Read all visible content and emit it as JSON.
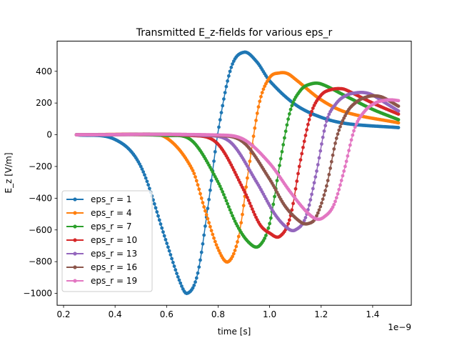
{
  "chart_data": {
    "type": "line",
    "title": "Transmitted E_z-fields for various eps_r",
    "xlabel": "time [s]",
    "ylabel": "E_z [V/m]",
    "x_offset_label": "1e−9",
    "xlim": [
      0.175,
      1.55
    ],
    "ylim": [
      -1075,
      590
    ],
    "x_ticks": [
      0.2,
      0.4,
      0.6,
      0.8,
      1.0,
      1.2,
      1.4
    ],
    "x_tick_labels": [
      "0.2",
      "0.4",
      "0.6",
      "0.8",
      "1.0",
      "1.2",
      "1.4"
    ],
    "y_ticks": [
      -1000,
      -800,
      -600,
      -400,
      -200,
      0,
      200,
      400
    ],
    "y_tick_labels": [
      "−1000",
      "−800",
      "−600",
      "−400",
      "−200",
      "0",
      "200",
      "400"
    ],
    "grid": false,
    "legend_position": "lower-left",
    "series": [
      {
        "name": "eps_r = 1",
        "color": "#1f77b4",
        "x": [
          0.25,
          0.4,
          0.5,
          0.6,
          0.65,
          0.68,
          0.72,
          0.76,
          0.8,
          0.85,
          0.9,
          0.95,
          1.0,
          1.1,
          1.2,
          1.3,
          1.5
        ],
        "y": [
          0,
          -30,
          -200,
          -680,
          -920,
          -1000,
          -880,
          -460,
          20,
          420,
          520,
          460,
          340,
          190,
          110,
          70,
          45
        ]
      },
      {
        "name": "eps_r = 4",
        "color": "#ff7f0e",
        "x": [
          0.25,
          0.5,
          0.6,
          0.7,
          0.75,
          0.8,
          0.84,
          0.88,
          0.92,
          0.96,
          1.0,
          1.04,
          1.07,
          1.1,
          1.2,
          1.3,
          1.5
        ],
        "y": [
          0,
          0,
          -20,
          -220,
          -480,
          -720,
          -800,
          -640,
          -200,
          200,
          360,
          390,
          385,
          350,
          220,
          140,
          75
        ]
      },
      {
        "name": "eps_r = 7",
        "color": "#2ca02c",
        "x": [
          0.25,
          0.6,
          0.7,
          0.8,
          0.87,
          0.92,
          0.96,
          1.0,
          1.04,
          1.08,
          1.12,
          1.16,
          1.2,
          1.3,
          1.4,
          1.5
        ],
        "y": [
          0,
          -5,
          -40,
          -300,
          -560,
          -680,
          -700,
          -560,
          -180,
          150,
          280,
          320,
          320,
          240,
          160,
          95
        ]
      },
      {
        "name": "eps_r = 10",
        "color": "#d62728",
        "x": [
          0.25,
          0.7,
          0.8,
          0.9,
          0.96,
          1.0,
          1.04,
          1.08,
          1.12,
          1.16,
          1.2,
          1.24,
          1.28,
          1.3,
          1.4,
          1.5
        ],
        "y": [
          0,
          -5,
          -60,
          -350,
          -560,
          -620,
          -640,
          -520,
          -160,
          130,
          250,
          285,
          290,
          280,
          200,
          130
        ]
      },
      {
        "name": "eps_r = 13",
        "color": "#9467bd",
        "x": [
          0.25,
          0.75,
          0.85,
          0.95,
          1.02,
          1.07,
          1.1,
          1.14,
          1.18,
          1.22,
          1.26,
          1.3,
          1.34,
          1.37,
          1.4,
          1.45,
          1.5
        ],
        "y": [
          0,
          -5,
          -50,
          -300,
          -500,
          -590,
          -600,
          -520,
          -250,
          80,
          200,
          250,
          265,
          265,
          250,
          200,
          150
        ]
      },
      {
        "name": "eps_r = 16",
        "color": "#8c564b",
        "x": [
          0.25,
          0.8,
          0.9,
          1.0,
          1.06,
          1.12,
          1.15,
          1.18,
          1.22,
          1.26,
          1.3,
          1.34,
          1.38,
          1.41,
          1.44,
          1.5
        ],
        "y": [
          0,
          -5,
          -50,
          -280,
          -450,
          -550,
          -560,
          -520,
          -330,
          -20,
          140,
          210,
          240,
          245,
          235,
          180
        ]
      },
      {
        "name": "eps_r = 19",
        "color": "#e377c2",
        "x": [
          0.25,
          0.8,
          0.9,
          1.0,
          1.08,
          1.14,
          1.18,
          1.21,
          1.25,
          1.29,
          1.33,
          1.37,
          1.41,
          1.44,
          1.47,
          1.5
        ],
        "y": [
          0,
          -2,
          -30,
          -180,
          -360,
          -480,
          -530,
          -520,
          -440,
          -220,
          40,
          150,
          200,
          215,
          220,
          215
        ]
      }
    ]
  }
}
